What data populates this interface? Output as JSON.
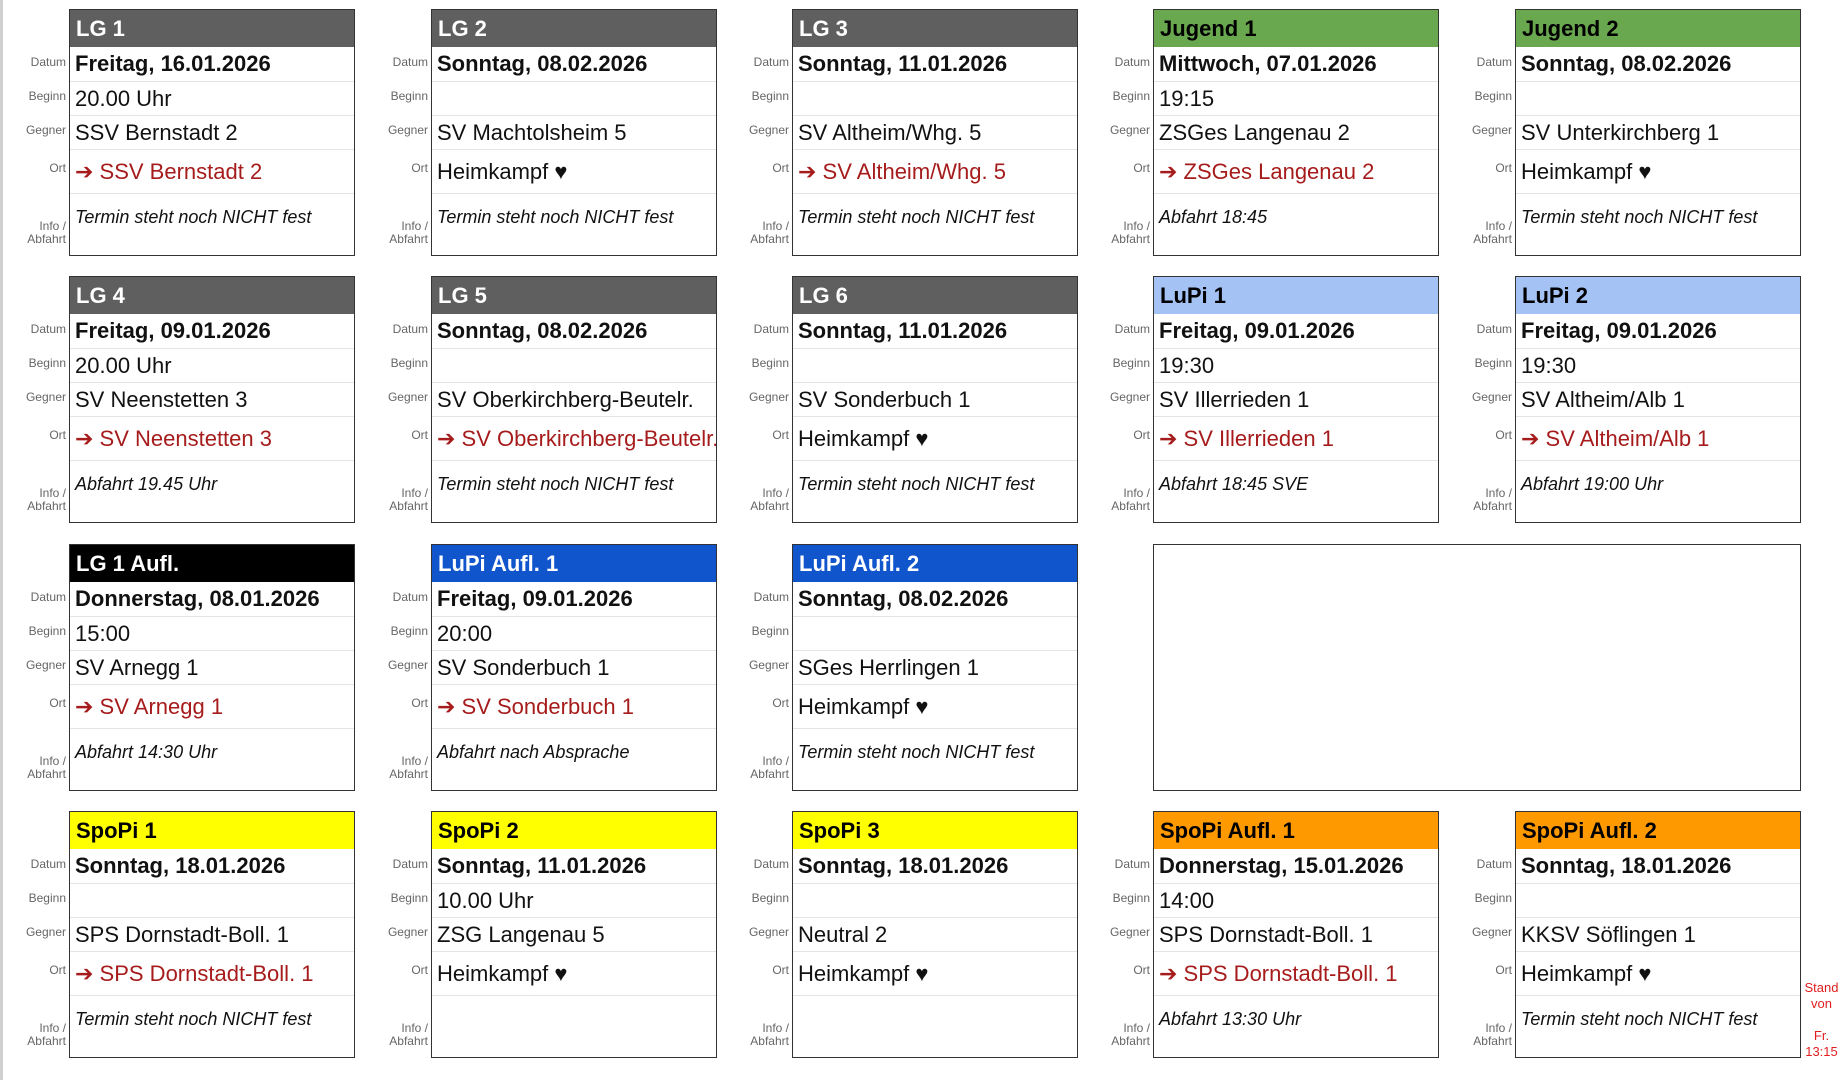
{
  "row_labels": {
    "datum": "Datum",
    "beginn": "Beginn",
    "gegner": "Gegner",
    "ort": "Ort",
    "info": "Info /",
    "info2": "Abfahrt"
  },
  "cards": [
    {
      "title": "LG 1",
      "color": "#5f5f5f",
      "text_color": "#ffffff",
      "datum": "Freitag, 16.01.2026",
      "beginn": "20.00 Uhr",
      "gegner": "SSV Bernstadt 2",
      "ort": "➔ SSV Bernstadt 2",
      "away": true,
      "info": "Termin steht noch NICHT fest"
    },
    {
      "title": "LG 2",
      "color": "#5f5f5f",
      "text_color": "#ffffff",
      "datum": "Sonntag, 08.02.2026",
      "beginn": "",
      "gegner": "SV Machtolsheim 5",
      "ort": "Heimkampf ♥",
      "away": false,
      "info": "Termin steht noch NICHT fest"
    },
    {
      "title": "LG 3",
      "color": "#5f5f5f",
      "text_color": "#ffffff",
      "datum": "Sonntag, 11.01.2026",
      "beginn": "",
      "gegner": "SV Altheim/Whg. 5",
      "ort": "➔ SV Altheim/Whg. 5",
      "away": true,
      "info": "Termin steht noch NICHT fest"
    },
    {
      "title": "Jugend 1",
      "color": "#6aa84f",
      "text_color": "#000000",
      "datum": "Mittwoch, 07.01.2026",
      "beginn": "19:15",
      "gegner": "ZSGes Langenau 2",
      "ort": "➔ ZSGes Langenau 2",
      "away": true,
      "info": "Abfahrt 18:45"
    },
    {
      "title": "Jugend 2",
      "color": "#6aa84f",
      "text_color": "#000000",
      "datum": "Sonntag, 08.02.2026",
      "beginn": "",
      "gegner": "SV Unterkirchberg 1",
      "ort": "Heimkampf ♥",
      "away": false,
      "info": "Termin steht noch NICHT fest"
    },
    {
      "title": "LG 4",
      "color": "#5f5f5f",
      "text_color": "#ffffff",
      "datum": "Freitag, 09.01.2026",
      "beginn": "20.00 Uhr",
      "gegner": "SV Neenstetten 3",
      "ort": "➔ SV Neenstetten 3",
      "away": true,
      "info": "Abfahrt 19.45 Uhr"
    },
    {
      "title": "LG 5",
      "color": "#5f5f5f",
      "text_color": "#ffffff",
      "datum": "Sonntag, 08.02.2026",
      "beginn": "",
      "gegner": "SV Oberkirchberg-Beutelr.",
      "ort": "➔ SV Oberkirchberg-Beutelr.",
      "away": true,
      "info": "Termin steht noch NICHT fest"
    },
    {
      "title": "LG 6",
      "color": "#5f5f5f",
      "text_color": "#ffffff",
      "datum": "Sonntag, 11.01.2026",
      "beginn": "",
      "gegner": "SV Sonderbuch 1",
      "ort": "Heimkampf ♥",
      "away": false,
      "info": "Termin steht noch NICHT fest"
    },
    {
      "title": "LuPi 1",
      "color": "#a4c2f4",
      "text_color": "#000000",
      "datum": "Freitag, 09.01.2026",
      "beginn": "19:30",
      "gegner": "SV Illerrieden 1",
      "ort": "➔ SV Illerrieden 1",
      "away": true,
      "info": "Abfahrt 18:45 SVE"
    },
    {
      "title": "LuPi 2",
      "color": "#a4c2f4",
      "text_color": "#000000",
      "datum": "Freitag, 09.01.2026",
      "beginn": "19:30",
      "gegner": "SV Altheim/Alb 1",
      "ort": "➔ SV Altheim/Alb 1",
      "away": true,
      "info": "Abfahrt 19:00 Uhr"
    },
    {
      "title": "LG 1 Aufl.",
      "color": "#000000",
      "text_color": "#ffffff",
      "datum": "Donnerstag, 08.01.2026",
      "beginn": "15:00",
      "gegner": "SV Arnegg 1",
      "ort": "➔ SV Arnegg 1",
      "away": true,
      "info": "Abfahrt 14:30 Uhr"
    },
    {
      "title": "LuPi Aufl. 1",
      "color": "#1155cc",
      "text_color": "#ffffff",
      "datum": "Freitag, 09.01.2026",
      "beginn": "20:00",
      "gegner": "SV Sonderbuch 1",
      "ort": "➔ SV Sonderbuch 1",
      "away": true,
      "info": "Abfahrt nach Absprache"
    },
    {
      "title": "LuPi Aufl. 2",
      "color": "#1155cc",
      "text_color": "#ffffff",
      "datum": "Sonntag, 08.02.2026",
      "beginn": "",
      "gegner": "SGes Herrlingen 1",
      "ort": "Heimkampf ♥",
      "away": false,
      "info": "Termin steht noch NICHT fest"
    },
    {
      "title": "SpoPi 1",
      "color": "#ffff00",
      "text_color": "#000000",
      "datum": "Sonntag, 18.01.2026",
      "beginn": "",
      "gegner": "SPS Dornstadt-Boll. 1",
      "ort": "➔ SPS Dornstadt-Boll. 1",
      "away": true,
      "info": "Termin steht noch NICHT fest"
    },
    {
      "title": "SpoPi 2",
      "color": "#ffff00",
      "text_color": "#000000",
      "datum": "Sonntag, 11.01.2026",
      "beginn": "10.00 Uhr",
      "gegner": "ZSG Langenau 5",
      "ort": "Heimkampf ♥",
      "away": false,
      "info": ""
    },
    {
      "title": "SpoPi 3",
      "color": "#ffff00",
      "text_color": "#000000",
      "datum": "Sonntag, 18.01.2026",
      "beginn": "",
      "gegner": "Neutral 2",
      "ort": "Heimkampf ♥",
      "away": false,
      "info": ""
    },
    {
      "title": "SpoPi Aufl. 1",
      "color": "#ff9900",
      "text_color": "#000000",
      "datum": "Donnerstag, 15.01.2026",
      "beginn": "14:00",
      "gegner": "SPS Dornstadt-Boll. 1",
      "ort": "➔ SPS Dornstadt-Boll. 1",
      "away": true,
      "info": "Abfahrt 13:30 Uhr"
    },
    {
      "title": "SpoPi Aufl. 2",
      "color": "#ff9900",
      "text_color": "#000000",
      "datum": "Sonntag, 18.01.2026",
      "beginn": "",
      "gegner": "KKSV Söflingen 1",
      "ort": "Heimkampf ♥",
      "away": false,
      "info": "Termin steht noch NICHT fest"
    }
  ],
  "stand": {
    "line1": "Stand",
    "line2": "von",
    "line3": "Fr.",
    "line4": "13:15"
  },
  "colors": {
    "away_text": "#a61c1c",
    "stand_text": "#e02020"
  }
}
